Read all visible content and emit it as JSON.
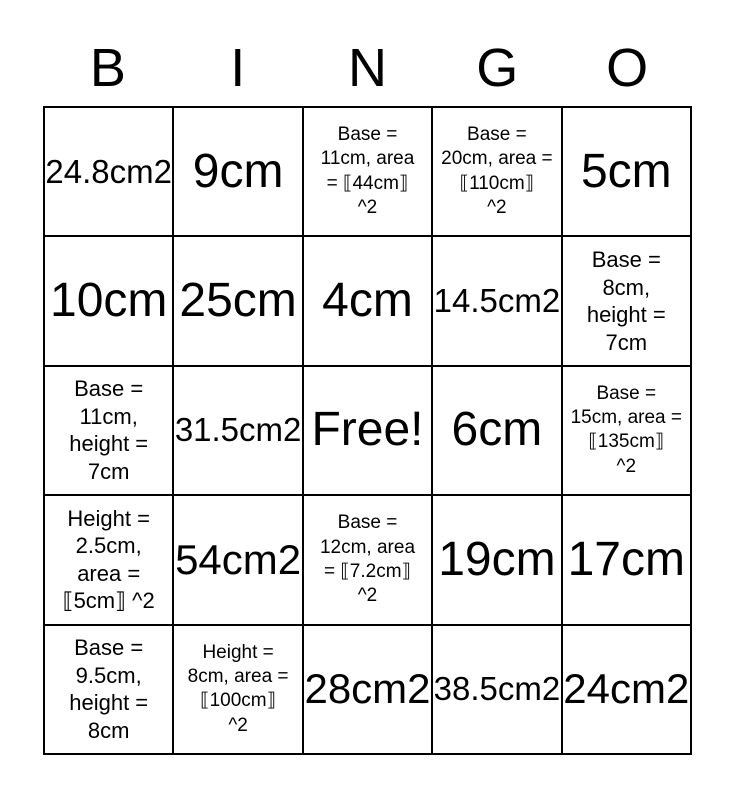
{
  "title": {
    "letters": [
      "B",
      "I",
      "N",
      "G",
      "O"
    ]
  },
  "colors": {
    "text": "#000000",
    "grid_border": "#000000",
    "background": "#ffffff"
  },
  "grid": {
    "rows": 5,
    "cols": 5,
    "free_cell_index": 12,
    "cells": [
      {
        "text": "24.8cm2"
      },
      {
        "text": "9cm"
      },
      {
        "text": "Base =\n11cm, area\n= ⟦44cm⟧\n^2"
      },
      {
        "text": "Base =\n20cm, area =\n⟦110cm⟧\n^2"
      },
      {
        "text": "5cm"
      },
      {
        "text": "10cm"
      },
      {
        "text": "25cm"
      },
      {
        "text": "4cm"
      },
      {
        "text": "14.5cm2"
      },
      {
        "text": "Base =\n8cm,\nheight =\n7cm"
      },
      {
        "text": "Base =\n11cm,\nheight =\n7cm"
      },
      {
        "text": "31.5cm2"
      },
      {
        "text": "Free!"
      },
      {
        "text": "6cm"
      },
      {
        "text": "Base =\n15cm, area =\n⟦135cm⟧\n^2"
      },
      {
        "text": "Height =\n2.5cm,\narea =\n⟦5cm⟧ ^2"
      },
      {
        "text": "54cm2"
      },
      {
        "text": "Base =\n12cm, area\n= ⟦7.2cm⟧\n^2"
      },
      {
        "text": "19cm"
      },
      {
        "text": "17cm"
      },
      {
        "text": "Base =\n9.5cm,\nheight =\n8cm"
      },
      {
        "text": "Height =\n8cm, area =\n⟦100cm⟧\n^2"
      },
      {
        "text": "28cm2"
      },
      {
        "text": "38.5cm2"
      },
      {
        "text": "24cm2"
      }
    ]
  }
}
